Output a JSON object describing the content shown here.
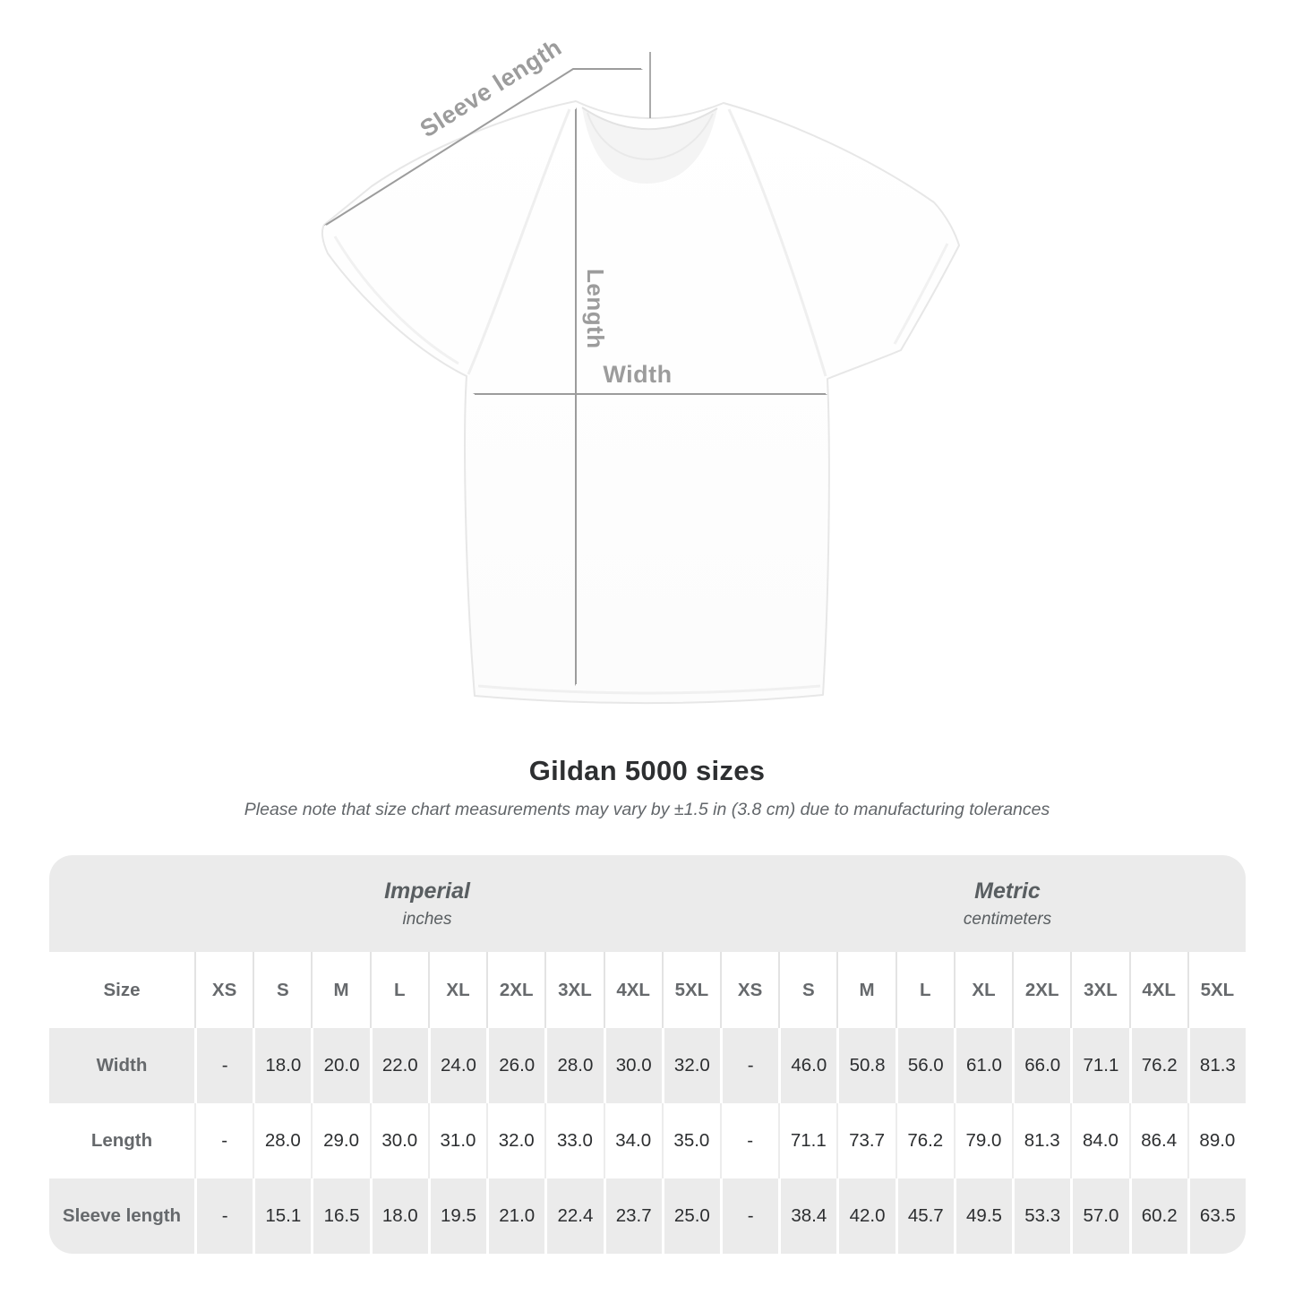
{
  "diagram": {
    "labels": {
      "sleeve_length": "Sleeve length",
      "length": "Length",
      "width": "Width"
    }
  },
  "chart_data": {
    "type": "table",
    "title": "Gildan 5000 sizes",
    "note": "Please note that size chart measurements may vary by ±1.5 in (3.8 cm) due to manufacturing tolerances",
    "unit_groups": [
      {
        "label": "Imperial",
        "sublabel": "inches"
      },
      {
        "label": "Metric",
        "sublabel": "centimeters"
      }
    ],
    "corner_header": "Size",
    "sizes": [
      "XS",
      "S",
      "M",
      "L",
      "XL",
      "2XL",
      "3XL",
      "4XL",
      "5XL"
    ],
    "rows": [
      {
        "label": "Width",
        "imperial": [
          "-",
          "18.0",
          "20.0",
          "22.0",
          "24.0",
          "26.0",
          "28.0",
          "30.0",
          "32.0"
        ],
        "metric": [
          "-",
          "46.0",
          "50.8",
          "56.0",
          "61.0",
          "66.0",
          "71.1",
          "76.2",
          "81.3"
        ]
      },
      {
        "label": "Length",
        "imperial": [
          "-",
          "28.0",
          "29.0",
          "30.0",
          "31.0",
          "32.0",
          "33.0",
          "34.0",
          "35.0"
        ],
        "metric": [
          "-",
          "71.1",
          "73.7",
          "76.2",
          "79.0",
          "81.3",
          "84.0",
          "86.4",
          "89.0"
        ]
      },
      {
        "label": "Sleeve length",
        "imperial": [
          "-",
          "15.1",
          "16.5",
          "18.0",
          "19.5",
          "21.0",
          "22.4",
          "23.7",
          "25.0"
        ],
        "metric": [
          "-",
          "38.4",
          "42.0",
          "45.7",
          "49.5",
          "53.3",
          "57.0",
          "60.2",
          "63.5"
        ]
      }
    ]
  },
  "colors": {
    "measure_line": "#9c9c9c",
    "header_band_bg": "#ebebeb",
    "alt_row_bg": "#ebebeb",
    "label_text": "#66696c",
    "value_text": "#2c2e30",
    "title_text": "#2d2f31",
    "note_text": "#62666a",
    "shirt_outline": "#e7e7e7"
  }
}
